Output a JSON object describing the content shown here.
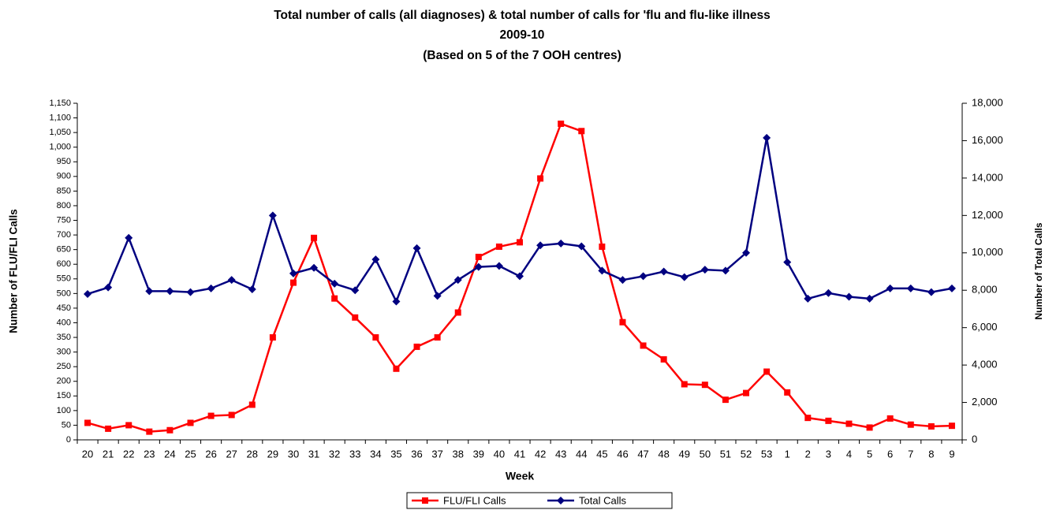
{
  "chart_data": {
    "type": "line",
    "title_lines": [
      "Total number of calls (all diagnoses) & total number of calls for 'flu and flu-like illness",
      "2009-10",
      "(Based on 5 of the 7 OOH centres)"
    ],
    "x_label": "Week",
    "y_label": "Number of FLU/FLI Calls",
    "y2_label": "Number of Total Calls",
    "categories": [
      "20",
      "21",
      "22",
      "23",
      "24",
      "25",
      "26",
      "27",
      "28",
      "29",
      "30",
      "31",
      "32",
      "33",
      "34",
      "35",
      "36",
      "37",
      "38",
      "39",
      "40",
      "41",
      "42",
      "43",
      "44",
      "45",
      "46",
      "47",
      "48",
      "49",
      "50",
      "51",
      "52",
      "53",
      "1",
      "2",
      "3",
      "4",
      "5",
      "6",
      "7",
      "8",
      "9"
    ],
    "series": [
      {
        "name": "FLU/FLI Calls",
        "color": "#ff0000",
        "marker": "square",
        "axis": "y",
        "values": [
          58,
          38,
          50,
          28,
          33,
          58,
          82,
          85,
          120,
          350,
          537,
          690,
          483,
          418,
          350,
          243,
          318,
          350,
          435,
          625,
          660,
          675,
          893,
          1080,
          1055,
          660,
          402,
          322,
          275,
          190,
          188,
          137,
          160,
          233,
          162,
          75,
          65,
          55,
          42,
          73,
          52,
          46,
          48
        ]
      },
      {
        "name": "Total Calls",
        "color": "#000080",
        "marker": "diamond",
        "axis": "y2",
        "values": [
          7800,
          8150,
          10800,
          7950,
          7950,
          7900,
          8100,
          8550,
          8050,
          12000,
          8900,
          9200,
          8350,
          8000,
          9650,
          7400,
          10250,
          7700,
          8550,
          9250,
          9300,
          8750,
          10400,
          10500,
          10350,
          9050,
          8550,
          8750,
          9000,
          8700,
          9100,
          9050,
          10000,
          16150,
          9500,
          7550,
          7850,
          7650,
          7550,
          8100,
          8100,
          7900,
          8100
        ]
      }
    ],
    "ylim": [
      0,
      1150
    ],
    "yticks": [
      0,
      50,
      100,
      150,
      200,
      250,
      300,
      350,
      400,
      450,
      500,
      550,
      600,
      650,
      700,
      750,
      800,
      850,
      900,
      950,
      {
        "value": 1000,
        "label": "1,000"
      },
      {
        "value": 1050,
        "label": "1,050"
      },
      {
        "value": 1100,
        "label": "1,100"
      },
      {
        "value": 1150,
        "label": "1,150"
      }
    ],
    "y2lim": [
      0,
      18000
    ],
    "y2ticks": [
      0,
      {
        "value": 2000,
        "label": "2,000"
      },
      {
        "value": 4000,
        "label": "4,000"
      },
      {
        "value": 6000,
        "label": "6,000"
      },
      {
        "value": 8000,
        "label": "8,000"
      },
      {
        "value": 10000,
        "label": "10,000"
      },
      {
        "value": 12000,
        "label": "12,000"
      },
      {
        "value": 14000,
        "label": "14,000"
      },
      {
        "value": 16000,
        "label": "16,000"
      },
      {
        "value": 18000,
        "label": "18,000"
      }
    ],
    "grid": false,
    "legend": "bottom"
  }
}
